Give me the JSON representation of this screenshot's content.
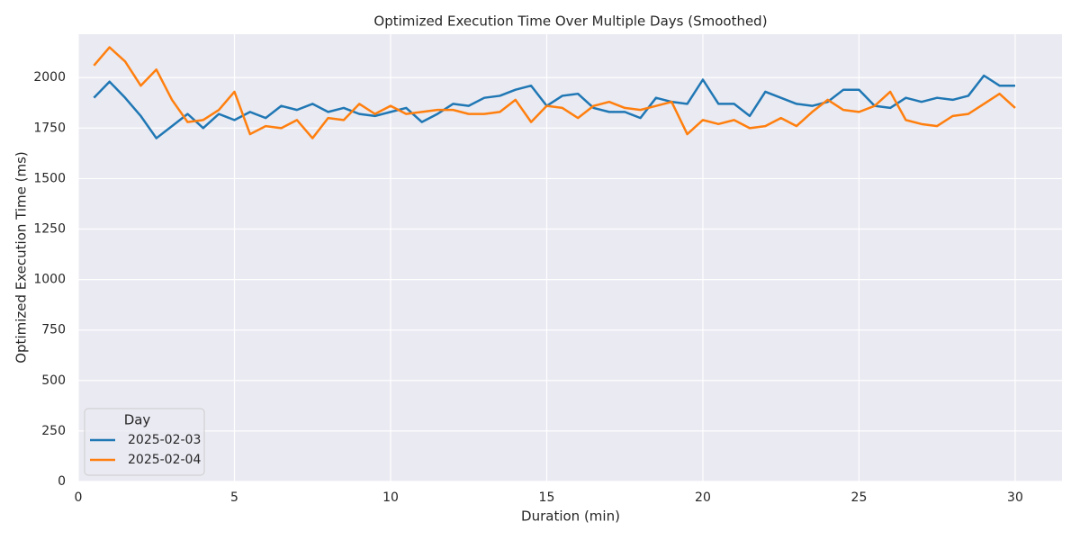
{
  "chart_data": {
    "type": "line",
    "title": "Optimized Execution Time Over Multiple Days (Smoothed)",
    "xlabel": "Duration (min)",
    "ylabel": "Optimized Execution Time (ms)",
    "x": [
      0.5,
      1,
      1.5,
      2,
      2.5,
      3,
      3.5,
      4,
      4.5,
      5,
      5.5,
      6,
      6.5,
      7,
      7.5,
      8,
      8.5,
      9,
      9.5,
      10,
      10.5,
      11,
      11.5,
      12,
      12.5,
      13,
      13.5,
      14,
      14.5,
      15,
      15.5,
      16,
      16.5,
      17,
      17.5,
      18,
      18.5,
      19,
      19.5,
      20,
      20.5,
      21,
      21.5,
      22,
      22.5,
      23,
      23.5,
      24,
      24.5,
      25,
      25.5,
      26,
      26.5,
      27,
      27.5,
      28,
      28.5,
      29,
      29.5,
      30
    ],
    "series": [
      {
        "name": "2025-02-03",
        "color": "#1f77b4",
        "values": [
          1900,
          1980,
          1900,
          1810,
          1700,
          1760,
          1820,
          1750,
          1820,
          1790,
          1830,
          1800,
          1860,
          1840,
          1870,
          1830,
          1850,
          1820,
          1810,
          1830,
          1850,
          1780,
          1820,
          1870,
          1860,
          1900,
          1910,
          1940,
          1960,
          1860,
          1910,
          1920,
          1850,
          1830,
          1830,
          1800,
          1900,
          1880,
          1870,
          1990,
          1870,
          1870,
          1810,
          1930,
          1900,
          1870,
          1860,
          1880,
          1940,
          1940,
          1860,
          1850,
          1900,
          1880,
          1900,
          1890,
          1910,
          2010,
          1960,
          1960
        ]
      },
      {
        "name": "2025-02-04",
        "color": "#ff7f0e",
        "values": [
          2060,
          2150,
          2080,
          1960,
          2040,
          1890,
          1780,
          1790,
          1840,
          1930,
          1720,
          1760,
          1750,
          1790,
          1700,
          1800,
          1790,
          1870,
          1820,
          1860,
          1820,
          1830,
          1840,
          1840,
          1820,
          1820,
          1830,
          1890,
          1780,
          1860,
          1850,
          1800,
          1860,
          1880,
          1850,
          1840,
          1860,
          1880,
          1720,
          1790,
          1770,
          1790,
          1750,
          1760,
          1800,
          1760,
          1830,
          1890,
          1840,
          1830,
          1860,
          1930,
          1790,
          1770,
          1760,
          1810,
          1820,
          1870,
          1920,
          1850
        ]
      }
    ],
    "xlim": [
      0,
      31.5
    ],
    "ylim": [
      0,
      2215
    ],
    "xticks": [
      0,
      5,
      10,
      15,
      20,
      25,
      30
    ],
    "yticks": [
      0,
      250,
      500,
      750,
      1000,
      1250,
      1500,
      1750,
      2000
    ],
    "grid": true,
    "legend_title": "Day",
    "legend_loc": "lower left"
  }
}
